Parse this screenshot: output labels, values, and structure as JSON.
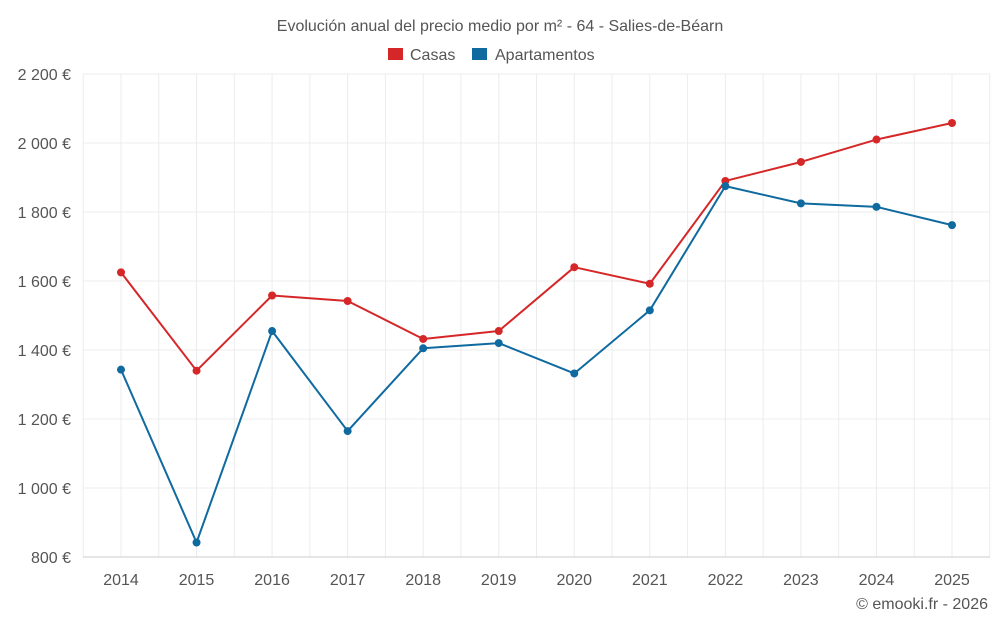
{
  "chart_data": {
    "type": "line",
    "title": "Evolución anual del precio medio por m² - 64 - Salies-de-Béarn",
    "categories": [
      "2014",
      "2015",
      "2016",
      "2017",
      "2018",
      "2019",
      "2020",
      "2021",
      "2022",
      "2023",
      "2024",
      "2025"
    ],
    "y_tick_labels": [
      "800 €",
      "1 000 €",
      "1 200 €",
      "1 400 €",
      "1 600 €",
      "1 800 €",
      "2 000 €",
      "2 200 €"
    ],
    "y_ticks": [
      800,
      1000,
      1200,
      1400,
      1600,
      1800,
      2000,
      2200
    ],
    "ylim": [
      800,
      2200
    ],
    "xlabel": "",
    "ylabel": "",
    "grid": true,
    "legend_position": "top-center",
    "series": [
      {
        "name": "Casas",
        "color": "#d62728",
        "values": [
          1625,
          1340,
          1558,
          1542,
          1432,
          1455,
          1640,
          1592,
          1890,
          1945,
          2010,
          2058
        ]
      },
      {
        "name": "Apartamentos",
        "color": "#0f6aa0",
        "values": [
          1343,
          842,
          1455,
          1165,
          1405,
          1420,
          1332,
          1515,
          1875,
          1825,
          1815,
          1762
        ]
      }
    ]
  },
  "credit": "© emooki.fr - 2026"
}
